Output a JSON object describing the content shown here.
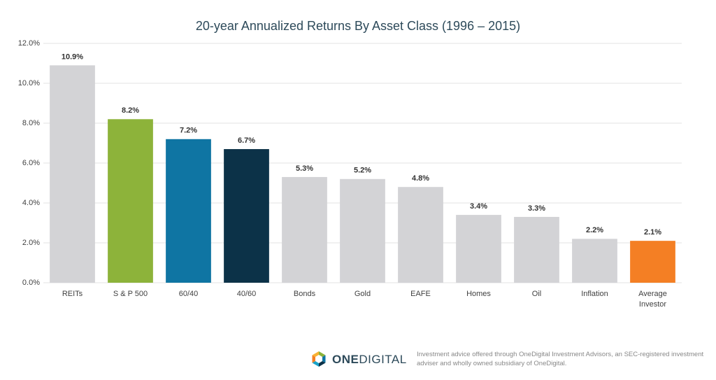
{
  "chart_data": {
    "type": "bar",
    "title": "20-year Annualized Returns By Asset Class (1996 – 2015)",
    "categories": [
      "REITs",
      "S & P 500",
      "60/40",
      "40/60",
      "Bonds",
      "Gold",
      "EAFE",
      "Homes",
      "Oil",
      "Inflation",
      "Average Investor"
    ],
    "values": [
      10.9,
      8.2,
      7.2,
      6.7,
      5.3,
      5.2,
      4.8,
      3.4,
      3.3,
      2.2,
      2.1
    ],
    "value_labels": [
      "10.9%",
      "8.2%",
      "7.2%",
      "6.7%",
      "5.3%",
      "5.2%",
      "4.8%",
      "3.4%",
      "3.3%",
      "2.2%",
      "2.1%"
    ],
    "colors": [
      "#d3d3d6",
      "#8db33a",
      "#0f75a3",
      "#0c3248",
      "#d3d3d6",
      "#d3d3d6",
      "#d3d3d6",
      "#d3d3d6",
      "#d3d3d6",
      "#d3d3d6",
      "#f47f24"
    ],
    "ylim": [
      0,
      12
    ],
    "yticks": [
      {
        "value": 0,
        "label": "0.0%"
      },
      {
        "value": 2,
        "label": "2.0%"
      },
      {
        "value": 4,
        "label": "4.0%"
      },
      {
        "value": 6,
        "label": "6.0%"
      },
      {
        "value": 8,
        "label": "8.0%"
      },
      {
        "value": 10,
        "label": "10.0%"
      },
      {
        "value": 12,
        "label": "12.0%"
      }
    ],
    "grid": true
  },
  "footer": {
    "logo_bold": "ONE",
    "logo_light": "DIGITAL",
    "disclaimer": "Investment advice offered through OneDigital Investment Advisors, an SEC-registered investment adviser and wholly owned subsidiary of OneDigital."
  }
}
